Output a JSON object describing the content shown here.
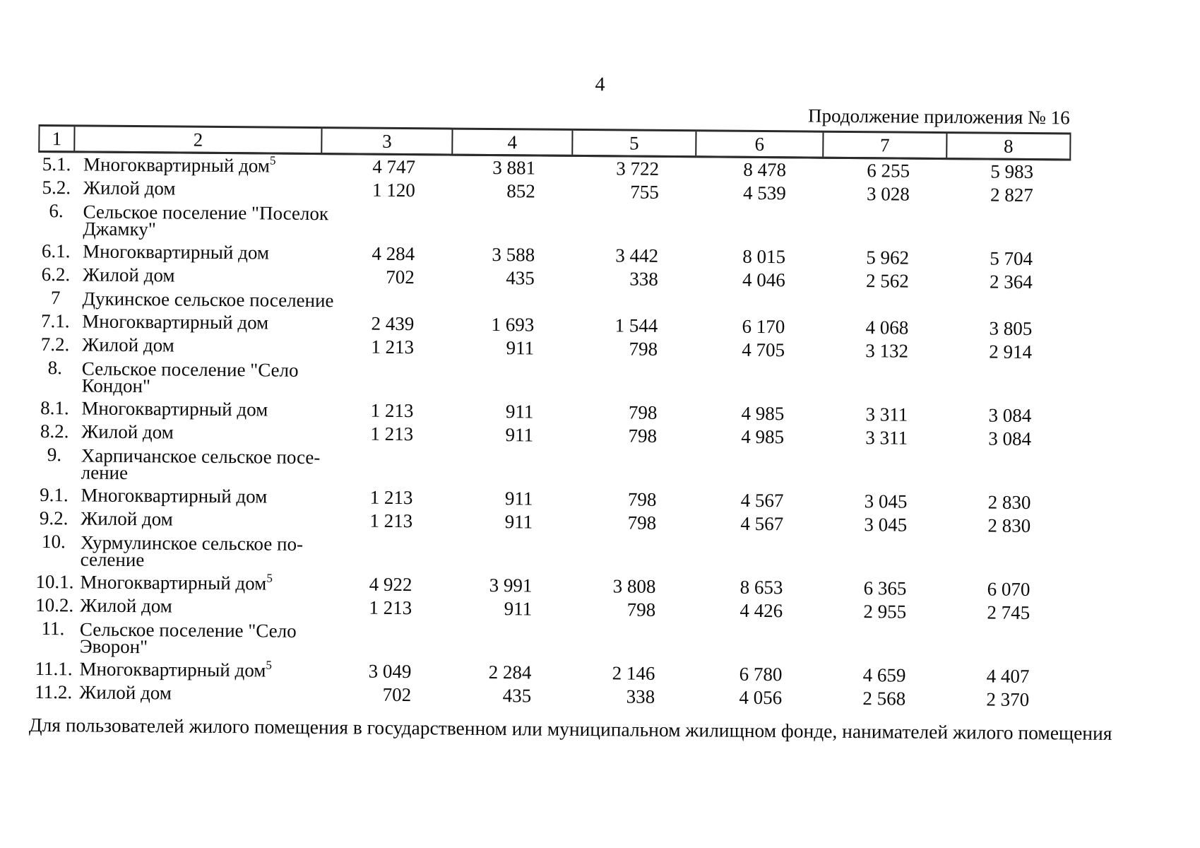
{
  "page": {
    "page_number": "4",
    "caption": "Продолжение приложения № 16",
    "footnote": "Для пользователей жилого помещения в государственном или муниципальном жилищном фонде, нанимателей жилого помещения"
  },
  "table": {
    "column_headers": [
      "1",
      "2",
      "3",
      "4",
      "5",
      "6",
      "7",
      "8"
    ],
    "rows": [
      {
        "num": "5.1.",
        "name": "Многоквартирный дом",
        "sup": "5",
        "section": false,
        "values": [
          "4 747",
          "3 881",
          "3 722",
          "8 478",
          "6 255",
          "5 983"
        ]
      },
      {
        "num": "5.2.",
        "name": "Жилой дом",
        "sup": "",
        "section": false,
        "values": [
          "1 120",
          "852",
          "755",
          "4 539",
          "3 028",
          "2 827"
        ]
      },
      {
        "num": "6.",
        "name": "Сельское поселение \"Поселок\nДжамку\"",
        "sup": "",
        "section": true,
        "values": [
          "",
          "",
          "",
          "",
          "",
          ""
        ]
      },
      {
        "num": "6.1.",
        "name": "Многоквартирный дом",
        "sup": "",
        "section": false,
        "values": [
          "4 284",
          "3 588",
          "3 442",
          "8 015",
          "5 962",
          "5 704"
        ]
      },
      {
        "num": "6.2.",
        "name": "Жилой дом",
        "sup": "",
        "section": false,
        "values": [
          "702",
          "435",
          "338",
          "4 046",
          "2 562",
          "2 364"
        ]
      },
      {
        "num": "7",
        "name": "Дукинское сельское поселение",
        "sup": "",
        "section": true,
        "values": [
          "",
          "",
          "",
          "",
          "",
          ""
        ]
      },
      {
        "num": "7.1.",
        "name": "Многоквартирный дом",
        "sup": "",
        "section": false,
        "values": [
          "2 439",
          "1 693",
          "1 544",
          "6 170",
          "4 068",
          "3 805"
        ]
      },
      {
        "num": "7.2.",
        "name": "Жилой дом",
        "sup": "",
        "section": false,
        "values": [
          "1 213",
          "911",
          "798",
          "4 705",
          "3 132",
          "2 914"
        ]
      },
      {
        "num": "8.",
        "name": "Сельское поселение \"Село\nКондон\"",
        "sup": "",
        "section": true,
        "values": [
          "",
          "",
          "",
          "",
          "",
          ""
        ]
      },
      {
        "num": "8.1.",
        "name": "Многоквартирный дом",
        "sup": "",
        "section": false,
        "values": [
          "1 213",
          "911",
          "798",
          "4 985",
          "3 311",
          "3 084"
        ]
      },
      {
        "num": "8.2.",
        "name": "Жилой дом",
        "sup": "",
        "section": false,
        "values": [
          "1 213",
          "911",
          "798",
          "4 985",
          "3 311",
          "3 084"
        ]
      },
      {
        "num": "9.",
        "name": "Харпичанское сельское посе-\nление",
        "sup": "",
        "section": true,
        "values": [
          "",
          "",
          "",
          "",
          "",
          ""
        ]
      },
      {
        "num": "9.1.",
        "name": "Многоквартирный дом",
        "sup": "",
        "section": false,
        "values": [
          "1 213",
          "911",
          "798",
          "4 567",
          "3 045",
          "2 830"
        ]
      },
      {
        "num": "9.2.",
        "name": "Жилой дом",
        "sup": "",
        "section": false,
        "values": [
          "1 213",
          "911",
          "798",
          "4 567",
          "3 045",
          "2 830"
        ]
      },
      {
        "num": "10.",
        "name": "Хурмулинское сельское по-\nселение",
        "sup": "",
        "section": true,
        "values": [
          "",
          "",
          "",
          "",
          "",
          ""
        ]
      },
      {
        "num": "10.1.",
        "name": "Многоквартирный дом",
        "sup": "5",
        "section": false,
        "values": [
          "4 922",
          "3 991",
          "3 808",
          "8 653",
          "6 365",
          "6 070"
        ]
      },
      {
        "num": "10.2.",
        "name": "Жилой дом",
        "sup": "",
        "section": false,
        "values": [
          "1 213",
          "911",
          "798",
          "4 426",
          "2 955",
          "2 745"
        ]
      },
      {
        "num": "11.",
        "name": "Сельское поселение \"Село\nЭворон\"",
        "sup": "",
        "section": true,
        "values": [
          "",
          "",
          "",
          "",
          "",
          ""
        ]
      },
      {
        "num": "11.1.",
        "name": "Многоквартирный дом",
        "sup": "5",
        "section": false,
        "values": [
          "3 049",
          "2 284",
          "2 146",
          "6 780",
          "4 659",
          "4 407"
        ]
      },
      {
        "num": "11.2.",
        "name": "Жилой дом",
        "sup": "",
        "section": false,
        "values": [
          "702",
          "435",
          "338",
          "4 056",
          "2 568",
          "2 370"
        ]
      }
    ]
  }
}
